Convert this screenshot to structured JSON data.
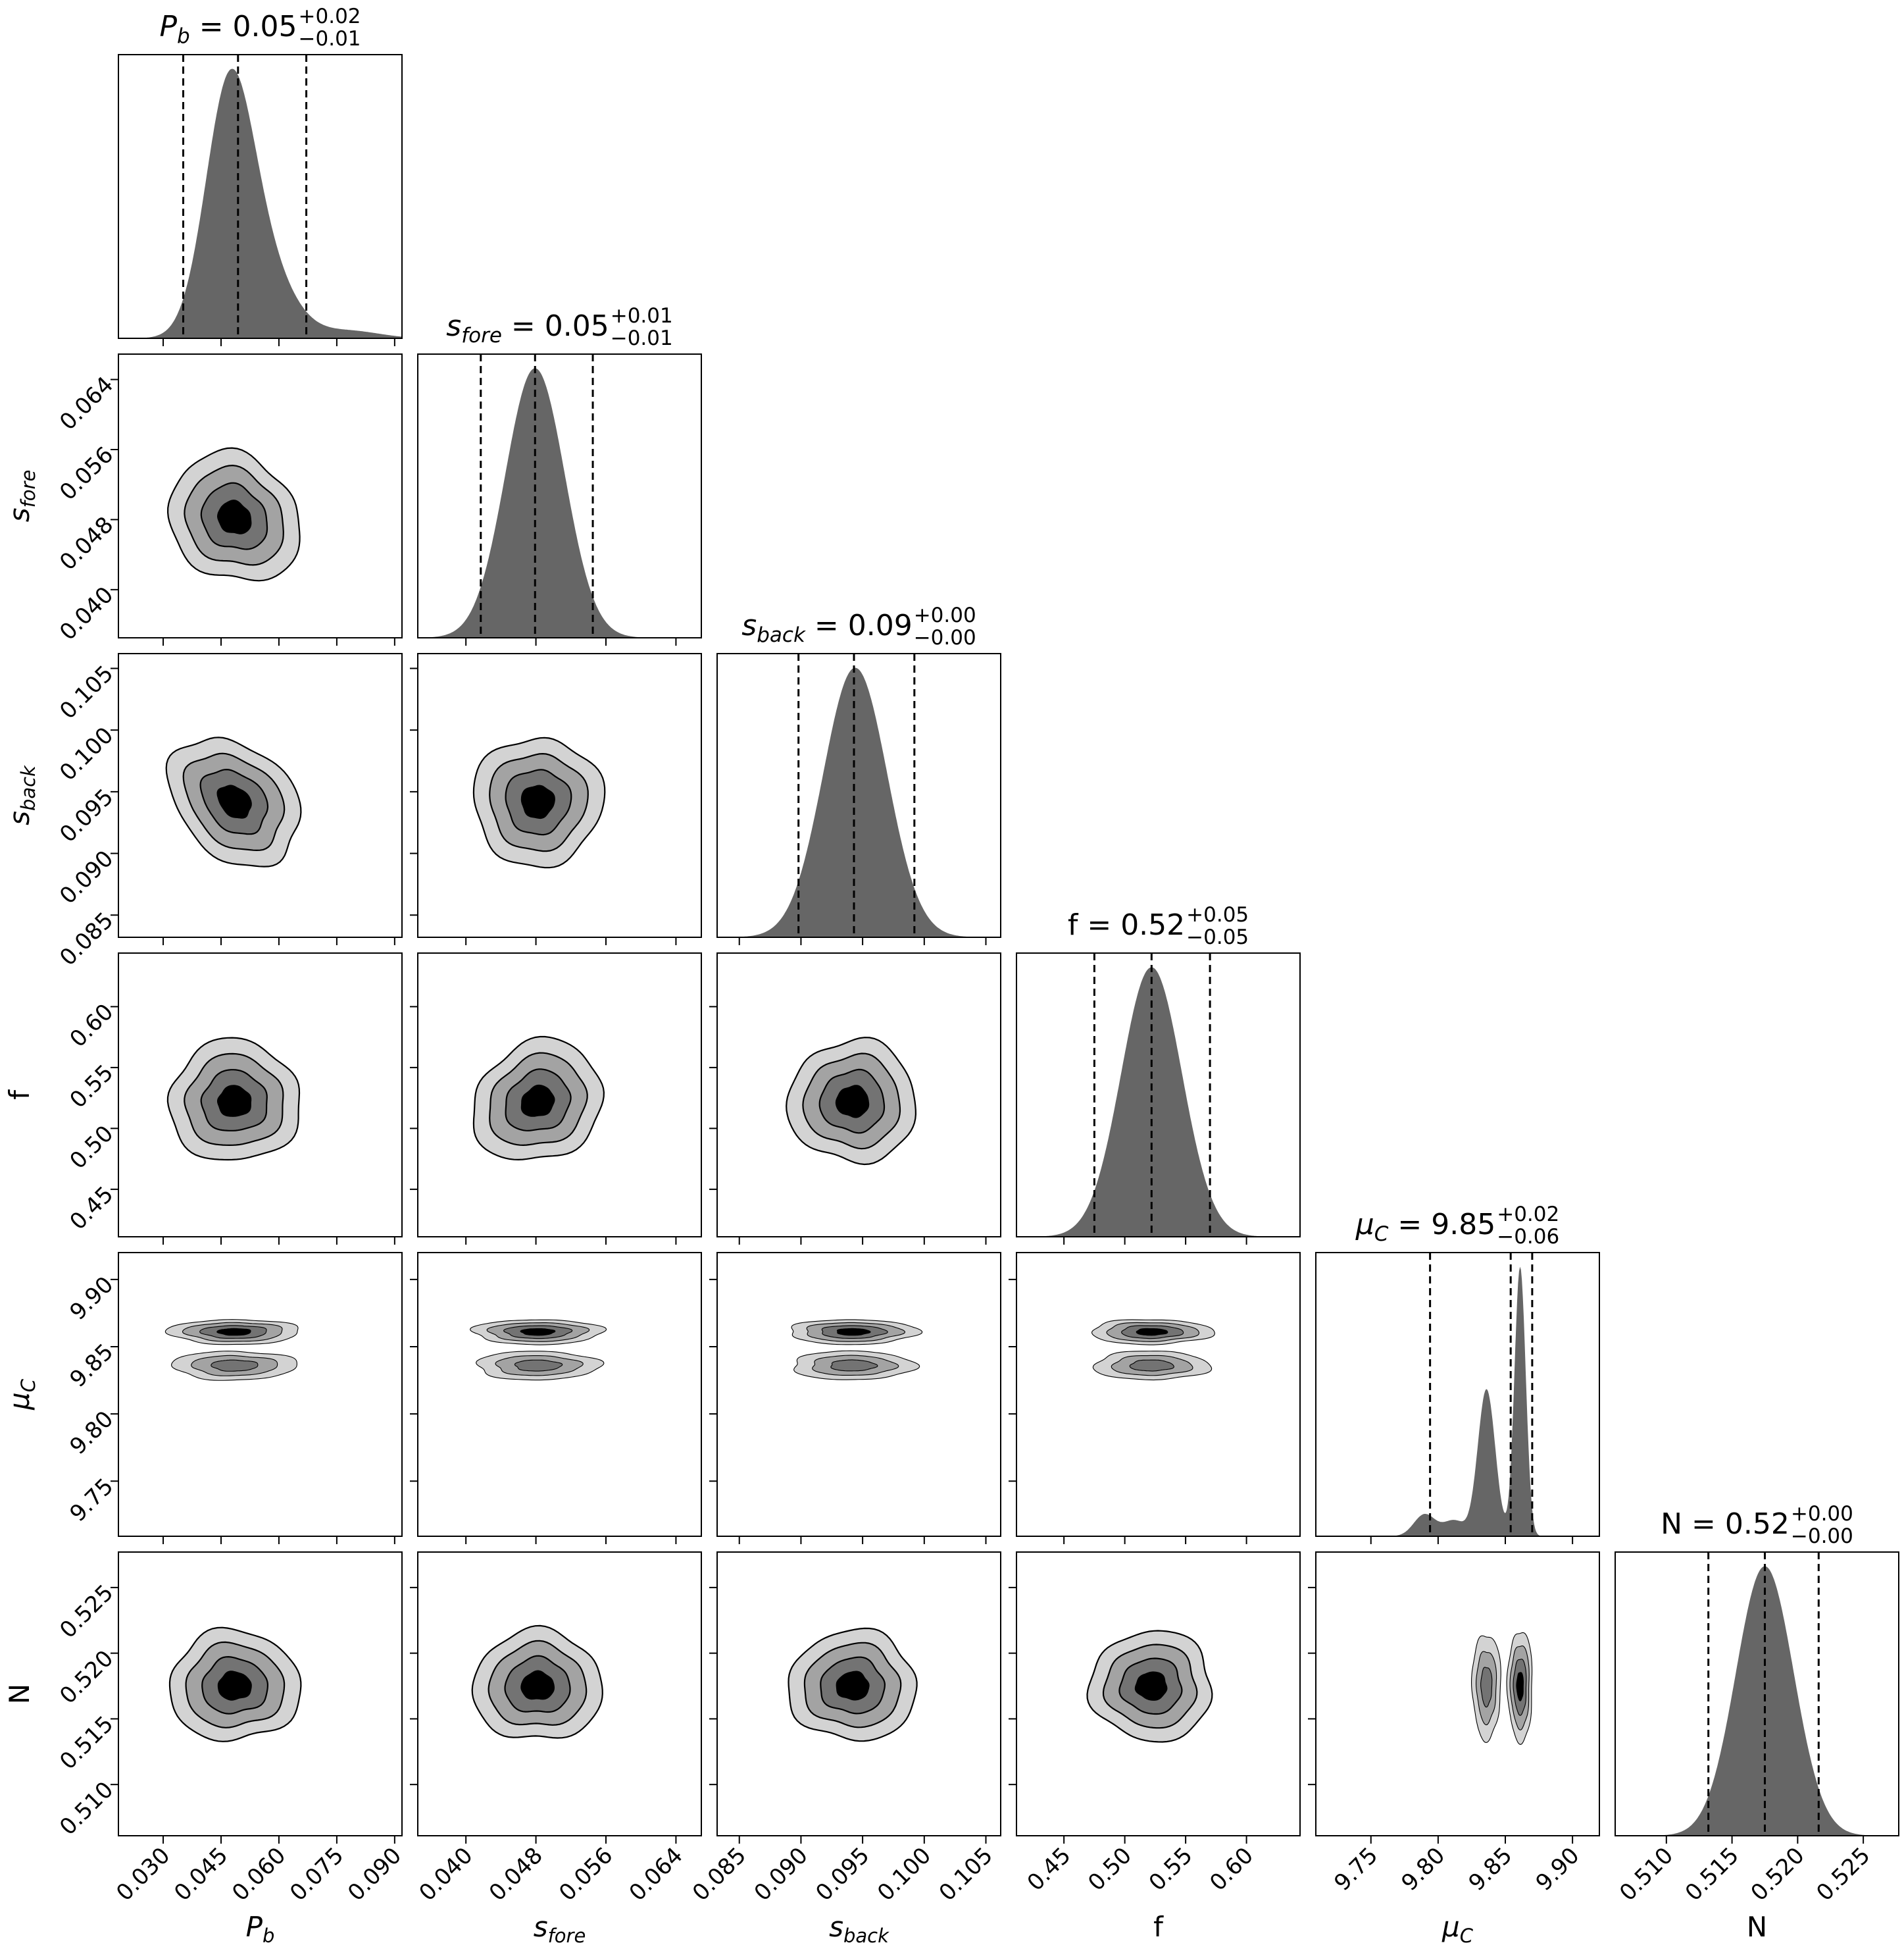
{
  "chart_data": {
    "type": "corner",
    "title_separator": " = ",
    "colors": {
      "histogram": "#666666",
      "contour_levels": [
        "#d3d3d3",
        "#a3a3a3",
        "#737373",
        "#000000"
      ],
      "contour_line": "#000000",
      "quantile_line": "#000000"
    },
    "contour_levels_sigma": [
      2,
      1.5,
      1,
      0.5
    ],
    "parameters": [
      {
        "key": "Pb",
        "label": {
          "main": "P",
          "sub": "b",
          "italic": true
        },
        "range": [
          0.0184,
          0.0919
        ],
        "ticks": [
          0.03,
          0.045,
          0.06,
          0.075,
          0.09
        ],
        "tick_labels": [
          "0.030",
          "0.045",
          "0.060",
          "0.075",
          "0.090"
        ],
        "quantiles": [
          0.0352,
          0.0494,
          0.0671
        ],
        "title": {
          "value": "0.05",
          "plus": "+0.02",
          "minus": "−0.01"
        },
        "pdf_components": [
          [
            0.72,
            0.047,
            0.0062
          ],
          [
            0.25,
            0.056,
            0.0075
          ],
          [
            0.03,
            0.078,
            0.008
          ]
        ],
        "contour": {
          "mu": 0.0485,
          "sd": 0.0085
        }
      },
      {
        "key": "sfore",
        "label": {
          "main": "s",
          "sub": "fore",
          "italic": true
        },
        "range": [
          0.0345,
          0.0669
        ],
        "ticks": [
          0.04,
          0.048,
          0.056,
          0.064
        ],
        "tick_labels": [
          "0.040",
          "0.048",
          "0.056",
          "0.064"
        ],
        "quantiles": [
          0.0417,
          0.0479,
          0.0545
        ],
        "title": {
          "value": "0.05",
          "plus": "+0.01",
          "minus": "−0.01"
        },
        "pdf_components": [
          [
            1,
            0.0479,
            0.0034
          ]
        ],
        "contour": {
          "mu": 0.0482,
          "sd": 0.0037
        }
      },
      {
        "key": "sback",
        "label": {
          "main": "s",
          "sub": "back",
          "italic": true
        },
        "range": [
          0.0832,
          0.1062
        ],
        "ticks": [
          0.085,
          0.09,
          0.095,
          0.1,
          0.105
        ],
        "tick_labels": [
          "0.085",
          "0.090",
          "0.095",
          "0.100",
          "0.105"
        ],
        "quantiles": [
          0.0898,
          0.0943,
          0.0992
        ],
        "title": {
          "value": "0.09",
          "plus": "+0.00",
          "minus": "−0.00"
        },
        "pdf_components": [
          [
            1,
            0.0944,
            0.0026
          ]
        ],
        "contour": {
          "mu": 0.0942,
          "sd": 0.0026
        }
      },
      {
        "key": "f",
        "label": {
          "main": "f",
          "sub": "",
          "italic": false
        },
        "range": [
          0.411,
          0.644
        ],
        "ticks": [
          0.45,
          0.5,
          0.55,
          0.6
        ],
        "tick_labels": [
          "0.45",
          "0.50",
          "0.55",
          "0.60"
        ],
        "quantiles": [
          0.475,
          0.522,
          0.57
        ],
        "title": {
          "value": "0.52",
          "plus": "+0.05",
          "minus": "−0.05"
        },
        "pdf_components": [
          [
            1,
            0.522,
            0.025
          ]
        ],
        "contour": {
          "mu": 0.522,
          "sd": 0.025
        }
      },
      {
        "key": "muC",
        "label": {
          "main": "μ",
          "sub": "C",
          "italic": true
        },
        "range": [
          9.709,
          9.92
        ],
        "ticks": [
          9.75,
          9.8,
          9.85,
          9.9
        ],
        "tick_labels": [
          "9.75",
          "9.80",
          "9.85",
          "9.90"
        ],
        "quantiles": [
          9.794,
          9.854,
          9.87
        ],
        "title": {
          "value": "9.85",
          "plus": "+0.02",
          "minus": "−0.06"
        },
        "pdf_components": [
          [
            0.45,
            9.861,
            0.0042
          ],
          [
            0.38,
            9.836,
            0.0065
          ],
          [
            0.07,
            9.79,
            0.008
          ],
          [
            0.05,
            9.812,
            0.008
          ]
        ],
        "contour": {
          "lobes": [
            {
              "mu": 9.861,
              "sd": 0.0045,
              "levels": [
                2,
                1.5,
                1,
                0.5
              ]
            },
            {
              "mu": 9.836,
              "sd": 0.0055,
              "levels": [
                1.9,
                1.3,
                0.7
              ]
            }
          ]
        }
      },
      {
        "key": "N",
        "label": {
          "main": "N",
          "sub": "",
          "italic": false
        },
        "range": [
          0.5061,
          0.5277
        ],
        "ticks": [
          0.51,
          0.515,
          0.52,
          0.525
        ],
        "tick_labels": [
          "0.510",
          "0.515",
          "0.520",
          "0.525"
        ],
        "quantiles": [
          0.5132,
          0.5175,
          0.5216
        ],
        "title": {
          "value": "0.52",
          "plus": "+0.00",
          "minus": "−0.00"
        },
        "pdf_components": [
          [
            1,
            0.5175,
            0.0022
          ]
        ],
        "contour": {
          "mu": 0.5175,
          "sd": 0.0021
        }
      }
    ],
    "correlations": [
      {
        "x": "Pb",
        "y": "sfore",
        "rho": -0.15
      },
      {
        "x": "Pb",
        "y": "sback",
        "rho": -0.3
      },
      {
        "x": "sfore",
        "y": "f",
        "rho": 0.15
      }
    ]
  }
}
